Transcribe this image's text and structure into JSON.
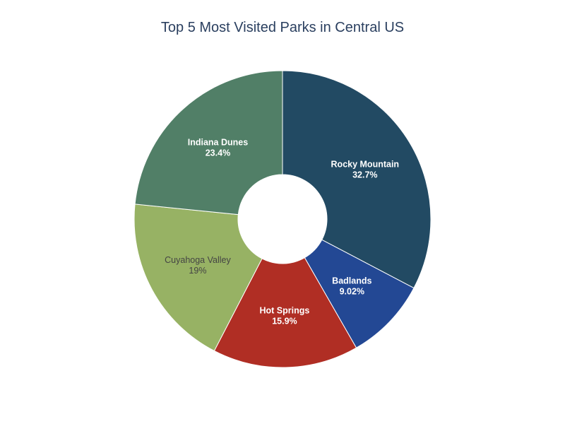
{
  "chart_data": {
    "type": "pie",
    "title": "Top 5 Most Visited Parks in Central US",
    "hole": 0.3,
    "slices": [
      {
        "label": "Rocky Mountain",
        "percent": 32.7,
        "percent_text": "32.7%",
        "color": "#224a63",
        "text_color": "#ffffff",
        "bold": true
      },
      {
        "label": "Badlands",
        "percent": 9.02,
        "percent_text": "9.02%",
        "color": "#234894",
        "text_color": "#ffffff",
        "bold": true
      },
      {
        "label": "Hot Springs",
        "percent": 15.9,
        "percent_text": "15.9%",
        "color": "#b02e24",
        "text_color": "#ffffff",
        "bold": true
      },
      {
        "label": "Cuyahoga Valley",
        "percent": 19,
        "percent_text": "19%",
        "color": "#97b264",
        "text_color": "#444444",
        "bold": false
      },
      {
        "label": "Indiana Dunes",
        "percent": 23.4,
        "percent_text": "23.4%",
        "color": "#517f67",
        "text_color": "#ffffff",
        "bold": true
      }
    ]
  }
}
